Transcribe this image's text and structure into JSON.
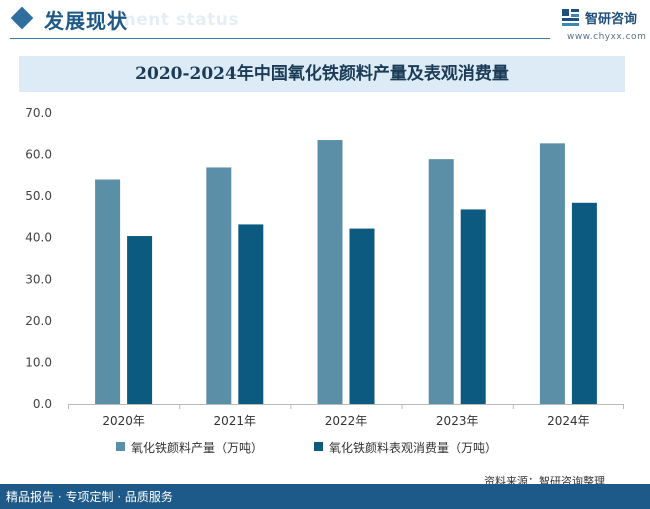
{
  "header": {
    "section_title": "发展现状",
    "watermark_text": "ment status",
    "brand_name": "智研咨询",
    "brand_url": "www.chyxx.com"
  },
  "colors": {
    "series_production": "#5b8fa8",
    "series_consumption": "#0d5a80",
    "accent": "#1e5a89",
    "title_band": "#dcebf5"
  },
  "chart_data": {
    "type": "bar",
    "title": "2020-2024年中国氧化铁颜料产量及表观消费量",
    "categories": [
      "2020年",
      "2021年",
      "2022年",
      "2023年",
      "2024年"
    ],
    "series": [
      {
        "name": "氧化铁颜料产量（万吨）",
        "values": [
          54.0,
          56.9,
          63.5,
          58.9,
          62.7
        ]
      },
      {
        "name": "氧化铁颜料表观消费量（万吨）",
        "values": [
          40.4,
          43.2,
          42.2,
          46.8,
          48.4
        ]
      }
    ],
    "ylim": [
      0,
      70
    ],
    "yticks": [
      "0.0",
      "10.0",
      "20.0",
      "30.0",
      "40.0",
      "50.0",
      "60.0",
      "70.0"
    ],
    "xlabel": "",
    "ylabel": "",
    "grid": false,
    "legend_position": "bottom"
  },
  "footer": {
    "source": "资料来源：智研咨询整理",
    "slogan": "精品报告 · 专项定制 · 品质服务"
  }
}
